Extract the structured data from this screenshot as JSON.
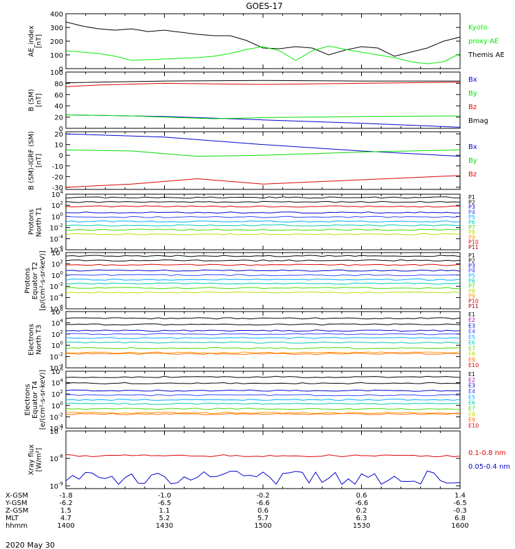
{
  "title": "GOES-17",
  "date": "2020 May 30",
  "colors": {
    "black": "#000000",
    "green": "#00dd00",
    "bright_green": "#00ee00",
    "blue": "#0000cc",
    "red": "#dd0000"
  },
  "x_axis": {
    "type": "time",
    "range": [
      "14:00",
      "16:00"
    ],
    "tick_times": [
      "1400",
      "1430",
      "1500",
      "1530",
      "1600"
    ],
    "rows": [
      {
        "label": "X-GSM",
        "values": [
          "-1.8",
          "-1.0",
          "-0.2",
          "0.6",
          "1.4"
        ]
      },
      {
        "label": "Y-GSM",
        "values": [
          "-6.2",
          "-6.5",
          "-6.6",
          "-6.6",
          "-6.5"
        ]
      },
      {
        "label": "Z-GSM",
        "values": [
          "1.5",
          "1.1",
          "0.6",
          "0.2",
          "-0.3"
        ]
      },
      {
        "label": "MLT",
        "values": [
          "4.7",
          "5.2",
          "5.7",
          "6.3",
          "6.8"
        ]
      },
      {
        "label": "hhmm",
        "values": [
          "1400",
          "1430",
          "1500",
          "1530",
          "1600"
        ]
      }
    ]
  },
  "chart_data": [
    {
      "type": "line",
      "ylabel": [
        "AE_index",
        "[nT]"
      ],
      "ylim": [
        0,
        400
      ],
      "yticks": [
        "0",
        "100",
        "200",
        "300",
        "400"
      ],
      "legend": [
        {
          "text": "Kyoto",
          "color": "#00ee00"
        },
        {
          "text": "proxy AE",
          "color": "#00ee00"
        },
        {
          "text": "Themis AE",
          "color": "#000000"
        }
      ],
      "series": [
        {
          "name": "Themis AE",
          "color": "#000000",
          "t": [
            0,
            5,
            10,
            15,
            20,
            25,
            30,
            35,
            40,
            45,
            50,
            55,
            60,
            65,
            70,
            75,
            80,
            85,
            90,
            95,
            100,
            105,
            110,
            115,
            120
          ],
          "values": [
            340,
            310,
            290,
            280,
            290,
            270,
            280,
            265,
            250,
            240,
            240,
            205,
            150,
            145,
            160,
            150,
            100,
            135,
            160,
            150,
            90,
            120,
            150,
            200,
            230
          ]
        },
        {
          "name": "Kyoto proxy AE",
          "color": "#00ee00",
          "t": [
            0,
            5,
            10,
            15,
            20,
            25,
            30,
            35,
            40,
            45,
            50,
            55,
            60,
            65,
            70,
            75,
            80,
            85,
            90,
            95,
            100,
            105,
            110,
            115,
            120
          ],
          "values": [
            130,
            120,
            110,
            90,
            60,
            65,
            70,
            75,
            80,
            90,
            110,
            140,
            160,
            130,
            60,
            130,
            165,
            140,
            120,
            100,
            80,
            50,
            35,
            50,
            110
          ]
        }
      ]
    },
    {
      "type": "line",
      "ylabel": [
        "B (SM)",
        "[nT]"
      ],
      "ylim": [
        0,
        100
      ],
      "yticks": [
        "0",
        "20",
        "40",
        "60",
        "80",
        "100"
      ],
      "legend": [
        {
          "text": "Bx",
          "color": "#0000cc"
        },
        {
          "text": "By",
          "color": "#00dd00"
        },
        {
          "text": "Bz",
          "color": "#dd0000"
        },
        {
          "text": "Bmag",
          "color": "#000000"
        }
      ],
      "series": [
        {
          "name": "Bmag",
          "color": "#000000",
          "t": [
            0,
            30,
            60,
            90,
            120
          ],
          "values": [
            81,
            84,
            85,
            84,
            84
          ]
        },
        {
          "name": "Bz",
          "color": "#dd0000",
          "t": [
            0,
            10,
            30,
            60,
            90,
            120
          ],
          "values": [
            74,
            77,
            80,
            78,
            80,
            82
          ]
        },
        {
          "name": "Bx",
          "color": "#0000cc",
          "t": [
            0,
            30,
            60,
            90,
            120
          ],
          "values": [
            24,
            21,
            15,
            9,
            2
          ]
        },
        {
          "name": "By",
          "color": "#00dd00",
          "t": [
            0,
            20,
            45,
            60,
            90,
            120
          ],
          "values": [
            24,
            22,
            17,
            19,
            21,
            22
          ]
        }
      ]
    },
    {
      "type": "line",
      "ylabel": [
        "B (SM)-IGRF (SM)",
        "[nT]"
      ],
      "ylim": [
        -32,
        22
      ],
      "yticks": [
        "-30",
        "-20",
        "-10",
        "0",
        "10",
        "20"
      ],
      "legend": [
        {
          "text": "Bx",
          "color": "#0000cc"
        },
        {
          "text": "By",
          "color": "#00dd00"
        },
        {
          "text": "Bz",
          "color": "#dd0000"
        }
      ],
      "series": [
        {
          "name": "Bx",
          "color": "#0000cc",
          "t": [
            0,
            30,
            60,
            90,
            120
          ],
          "values": [
            20,
            17,
            10,
            4,
            -1
          ]
        },
        {
          "name": "By",
          "color": "#00dd00",
          "t": [
            0,
            20,
            40,
            60,
            90,
            120
          ],
          "values": [
            5,
            4,
            -1,
            0,
            3,
            5
          ]
        },
        {
          "name": "Bz",
          "color": "#dd0000",
          "t": [
            0,
            20,
            40,
            60,
            90,
            120
          ],
          "values": [
            -30,
            -27,
            -22,
            -27,
            -23,
            -19
          ]
        }
      ]
    },
    {
      "type": "line",
      "log": true,
      "ylabel": [
        "Protons",
        "North T1"
      ],
      "ylim": [
        -6,
        4
      ],
      "yticks": [
        -6,
        -4,
        -2,
        0,
        2,
        4
      ],
      "legend": [
        {
          "text": "P1",
          "color": "#000000"
        },
        {
          "text": "P2",
          "color": "#000000"
        },
        {
          "text": "P3",
          "color": "#0000cc"
        },
        {
          "text": "P4",
          "color": "#3344ff"
        },
        {
          "text": "P5",
          "color": "#00aaff"
        },
        {
          "text": "P6",
          "color": "#00ccaa"
        },
        {
          "text": "P7",
          "color": "#44dd00"
        },
        {
          "text": "P8",
          "color": "#bbdd00"
        },
        {
          "text": "P9",
          "color": "#ff9900"
        },
        {
          "text": "P10",
          "color": "#dd0000"
        },
        {
          "text": "P11",
          "color": "#aa0000"
        }
      ],
      "series": [
        {
          "name": "P1",
          "color": "#000000",
          "level": 3.4
        },
        {
          "name": "P2",
          "color": "#000000",
          "level": 2.6
        },
        {
          "name": "P3",
          "color": "#dd0000",
          "level": 1.8
        },
        {
          "name": "P4",
          "color": "#0000cc",
          "level": 0.7
        },
        {
          "name": "P5",
          "color": "#3344ff",
          "level": -0.1
        },
        {
          "name": "P6",
          "color": "#00aaff",
          "level": -0.9
        },
        {
          "name": "P7",
          "color": "#00ccaa",
          "level": -1.6
        },
        {
          "name": "P8",
          "color": "#44dd00",
          "level": -2.4
        },
        {
          "name": "P9",
          "color": "#bbdd00",
          "level": -3.2
        }
      ]
    },
    {
      "type": "line",
      "log": true,
      "ylabel": [
        "Protons",
        "Equator T2",
        "[p/(cm²-s-sr-keV)]"
      ],
      "ylim": [
        -6,
        4
      ],
      "yticks": [
        -6,
        -4,
        -2,
        0,
        2,
        4
      ],
      "legend": [
        {
          "text": "P1",
          "color": "#000000"
        },
        {
          "text": "P2",
          "color": "#000000"
        },
        {
          "text": "P3",
          "color": "#0000cc"
        },
        {
          "text": "P4",
          "color": "#3344ff"
        },
        {
          "text": "P5",
          "color": "#00aaff"
        },
        {
          "text": "P6",
          "color": "#00ccaa"
        },
        {
          "text": "P7",
          "color": "#44dd00"
        },
        {
          "text": "P8",
          "color": "#bbdd00"
        },
        {
          "text": "P9",
          "color": "#ff9900"
        },
        {
          "text": "P10",
          "color": "#dd0000"
        },
        {
          "text": "P11",
          "color": "#aa0000"
        }
      ],
      "series": [
        {
          "name": "P1",
          "color": "#000000",
          "level": 3.4
        },
        {
          "name": "P2",
          "color": "#000000",
          "level": 2.6
        },
        {
          "name": "P3",
          "color": "#dd0000",
          "level": 1.8
        },
        {
          "name": "P4",
          "color": "#0000cc",
          "level": 0.8
        },
        {
          "name": "P5",
          "color": "#3344ff",
          "level": 0.0
        },
        {
          "name": "P6",
          "color": "#00aaff",
          "level": -0.8
        },
        {
          "name": "P7",
          "color": "#00ccaa",
          "level": -1.5
        },
        {
          "name": "P8",
          "color": "#44dd00",
          "level": -2.3
        },
        {
          "name": "P9",
          "color": "#bbdd00",
          "level": -3.1
        }
      ]
    },
    {
      "type": "line",
      "log": true,
      "ylabel": [
        "Electrons",
        "North T3"
      ],
      "ylim": [
        -4,
        6
      ],
      "yticks": [
        -4,
        -2,
        0,
        2,
        4,
        6
      ],
      "legend": [
        {
          "text": "E1",
          "color": "#000000"
        },
        {
          "text": "E2",
          "color": "#aa00aa"
        },
        {
          "text": "E3",
          "color": "#0000cc"
        },
        {
          "text": "E4",
          "color": "#3344ff"
        },
        {
          "text": "E5",
          "color": "#00aaff"
        },
        {
          "text": "E6",
          "color": "#00ccaa"
        },
        {
          "text": "E7",
          "color": "#44dd00"
        },
        {
          "text": "E8",
          "color": "#bbdd00"
        },
        {
          "text": "E9",
          "color": "#ff6600"
        },
        {
          "text": "E10",
          "color": "#dd0000"
        }
      ],
      "series": [
        {
          "name": "E1",
          "color": "#000000",
          "level": 4.8
        },
        {
          "name": "E2",
          "color": "#000000",
          "level": 3.7
        },
        {
          "name": "E3",
          "color": "#0000cc",
          "level": 2.6
        },
        {
          "name": "E4",
          "color": "#3344ff",
          "level": 2.0
        },
        {
          "name": "E5",
          "color": "#00aaff",
          "level": 1.3
        },
        {
          "name": "E6",
          "color": "#00ccaa",
          "level": 0.5
        },
        {
          "name": "E7",
          "color": "#44dd00",
          "level": -0.5
        },
        {
          "name": "E8",
          "color": "#ff9900",
          "level": -1.3
        },
        {
          "name": "E9",
          "color": "#ff6600",
          "level": -1.5
        }
      ]
    },
    {
      "type": "line",
      "log": true,
      "ylabel": [
        "Electrons",
        "Equator T4",
        "[e/(cm²-s-sr-keV)]"
      ],
      "ylim": [
        -4,
        6
      ],
      "yticks": [
        -4,
        -2,
        0,
        2,
        4,
        6
      ],
      "legend": [
        {
          "text": "E1",
          "color": "#000000"
        },
        {
          "text": "E2",
          "color": "#aa00aa"
        },
        {
          "text": "E3",
          "color": "#0000cc"
        },
        {
          "text": "E4",
          "color": "#3344ff"
        },
        {
          "text": "E5",
          "color": "#00aaff"
        },
        {
          "text": "E6",
          "color": "#00ccaa"
        },
        {
          "text": "E7",
          "color": "#44dd00"
        },
        {
          "text": "E8",
          "color": "#bbdd00"
        },
        {
          "text": "E9",
          "color": "#ff6600"
        },
        {
          "text": "E10",
          "color": "#dd0000"
        }
      ],
      "series": [
        {
          "name": "E1",
          "color": "#000000",
          "level": 5.0
        },
        {
          "name": "E2",
          "color": "#000000",
          "level": 3.9
        },
        {
          "name": "E3",
          "color": "#0000cc",
          "level": 2.6
        },
        {
          "name": "E4",
          "color": "#3344ff",
          "level": 1.8
        },
        {
          "name": "E5",
          "color": "#00aaff",
          "level": 1.0
        },
        {
          "name": "E6",
          "color": "#00ccaa",
          "level": 0.3
        },
        {
          "name": "E7",
          "color": "#44dd00",
          "level": -0.6
        },
        {
          "name": "E8",
          "color": "#ff9900",
          "level": -1.3
        },
        {
          "name": "E9",
          "color": "#ff6600",
          "level": -1.5
        }
      ]
    },
    {
      "type": "line",
      "log": true,
      "ylabel": [
        "Xray flux",
        "[W/m²]"
      ],
      "ylim": [
        -9.1,
        -7
      ],
      "yticks": [
        -9,
        -8,
        -7
      ],
      "legend": [
        {
          "text": "0.1-0.8 nm",
          "color": "#dd0000"
        },
        {
          "text": "0.05-0.4 nm",
          "color": "#0000cc"
        }
      ],
      "series": [
        {
          "name": "0.1-0.8 nm",
          "color": "#dd0000",
          "level": -7.9
        },
        {
          "name": "0.05-0.4 nm",
          "color": "#0000cc",
          "level": -8.7
        }
      ]
    }
  ]
}
